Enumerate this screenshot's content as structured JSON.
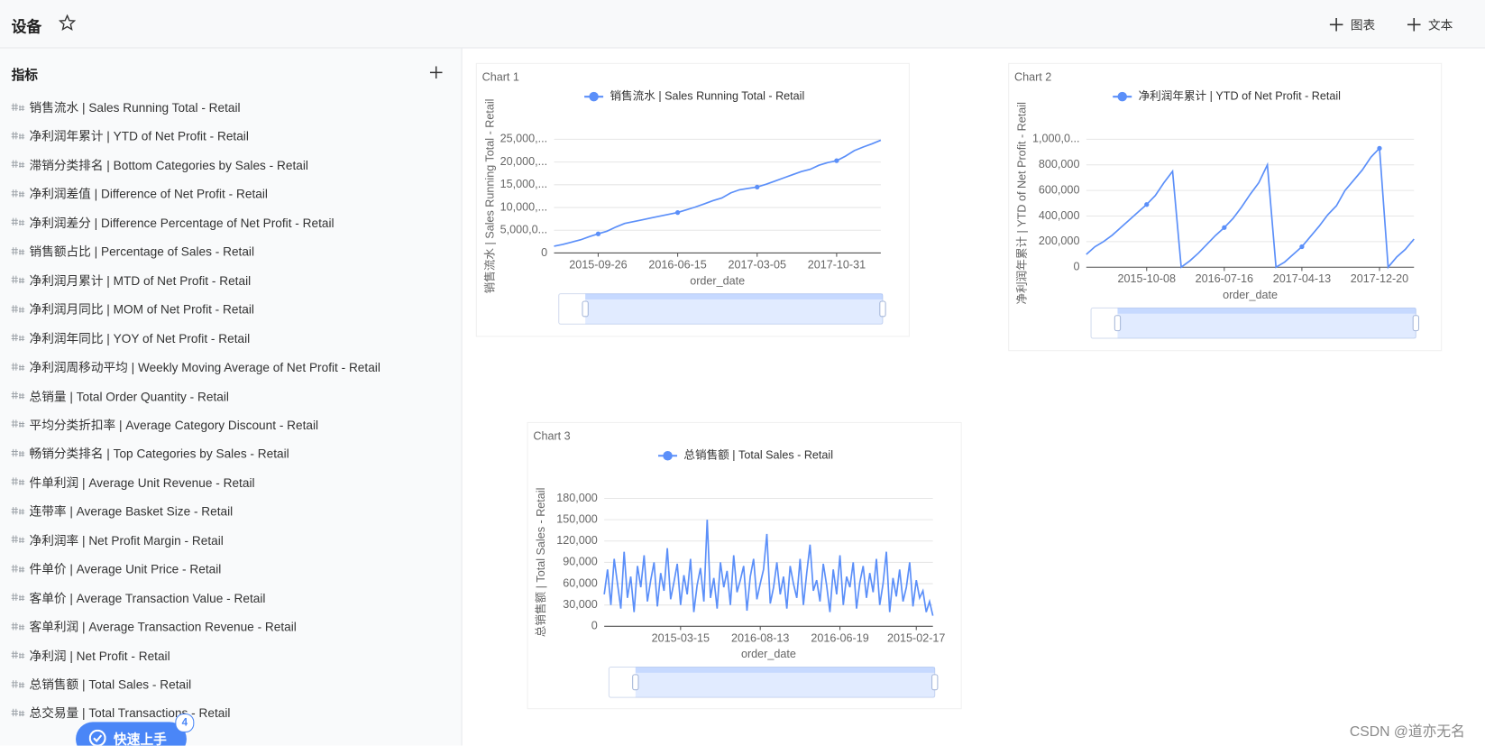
{
  "header": {
    "title": "设备",
    "actions": [
      "图表",
      "文本"
    ]
  },
  "sidebar": {
    "title": "指标",
    "items": [
      "销售流水 | Sales Running Total - Retail",
      "净利润年累计 | YTD of Net Profit - Retail",
      "滞销分类排名 | Bottom Categories by Sales - Retail",
      "净利润差值 | Difference of Net Profit - Retail",
      "净利润差分 | Difference Percentage of Net Profit - Retail",
      "销售额占比 | Percentage of Sales - Retail",
      "净利润月累计 | MTD of Net Profit - Retail",
      "净利润月同比 | MOM of Net Profit - Retail",
      "净利润年同比 | YOY of Net Profit - Retail",
      "净利润周移动平均 | Weekly Moving Average of Net Profit - Retail",
      "总销量 | Total Order Quantity - Retail",
      "平均分类折扣率 | Average Category Discount - Retail",
      "畅销分类排名 | Top Categories by Sales - Retail",
      "件单利润 | Average Unit Revenue - Retail",
      "连带率 | Average Basket Size - Retail",
      "净利润率 | Net Profit Margin - Retail",
      "件单价 | Average Unit Price - Retail",
      "客单价 | Average Transaction Value - Retail",
      "客单利润 | Average Transaction Revenue - Retail",
      "净利润 | Net Profit - Retail",
      "总销售额 | Total Sales - Retail",
      "总交易量 | Total Transactions - Retail"
    ]
  },
  "quick_start": {
    "label": "快速上手",
    "badge": "4"
  },
  "watermark": "CSDN @道亦无名",
  "chart_data": [
    {
      "type": "line",
      "title": "Chart 1",
      "x_label": "order_date",
      "y_label": "销售流水 | Sales Running Total - Retail",
      "markers": true,
      "categories": [
        null,
        null,
        null,
        null,
        null,
        "2015-09-26",
        null,
        null,
        null,
        null,
        null,
        null,
        null,
        null,
        "2016-06-15",
        null,
        null,
        null,
        null,
        null,
        null,
        null,
        null,
        "2017-03-05",
        null,
        null,
        null,
        null,
        null,
        null,
        null,
        null,
        "2017-10-31",
        null,
        null,
        null,
        null,
        null
      ],
      "series": [
        {
          "name": "销售流水 | Sales Running Total - Retail",
          "color": "#5b8ff9",
          "values": [
            1500000,
            1900000,
            2400000,
            2900000,
            3600000,
            4200000,
            4800000,
            5700000,
            6500000,
            6900000,
            7300000,
            7700000,
            8100000,
            8500000,
            8900000,
            9500000,
            10100000,
            10800000,
            11500000,
            12100000,
            13200000,
            13900000,
            14200000,
            14500000,
            15100000,
            15800000,
            16500000,
            17200000,
            17900000,
            18400000,
            19300000,
            19900000,
            20300000,
            21300000,
            22500000,
            23300000,
            24000000,
            24800000
          ]
        }
      ],
      "ylim": [
        0,
        25000000
      ],
      "yticks": [
        0,
        {
          "value": 5000000,
          "label": "5,000,0..."
        },
        {
          "value": 10000000,
          "label": "10,000,..."
        },
        {
          "value": 15000000,
          "label": "15,000,..."
        },
        {
          "value": 20000000,
          "label": "20,000,..."
        },
        {
          "value": 25000000,
          "label": "25,000,..."
        }
      ],
      "grid": true
    },
    {
      "type": "line",
      "title": "Chart 2",
      "x_label": "order_date",
      "y_label": "净利润年累计 | YTD of Net Profit - Retail",
      "markers": true,
      "categories": [
        null,
        null,
        null,
        null,
        null,
        null,
        null,
        "2015-10-08",
        null,
        null,
        null,
        null,
        null,
        null,
        null,
        null,
        "2016-07-16",
        null,
        null,
        null,
        null,
        null,
        null,
        null,
        null,
        "2017-04-13",
        null,
        null,
        null,
        null,
        null,
        null,
        null,
        null,
        "2017-12-20",
        null,
        null,
        null,
        null
      ],
      "series": [
        {
          "name": "净利润年累计 | YTD of Net Profit - Retail",
          "color": "#5b8ff9",
          "values": [
            100000,
            160000,
            200000,
            250000,
            310000,
            370000,
            430000,
            490000,
            560000,
            660000,
            750000,
            0,
            50000,
            110000,
            180000,
            250000,
            310000,
            380000,
            470000,
            570000,
            660000,
            800000,
            0,
            40000,
            100000,
            160000,
            240000,
            320000,
            410000,
            480000,
            600000,
            680000,
            760000,
            860000,
            930000,
            0,
            80000,
            140000,
            220000
          ]
        }
      ],
      "ylim": [
        0,
        1000000
      ],
      "yticks": [
        0,
        {
          "value": 200000,
          "label": "200,000"
        },
        {
          "value": 400000,
          "label": "400,000"
        },
        {
          "value": 600000,
          "label": "600,000"
        },
        {
          "value": 800000,
          "label": "800,000"
        },
        {
          "value": 1000000,
          "label": "1,000,0..."
        }
      ],
      "grid": true
    },
    {
      "type": "line",
      "title": "Chart 3",
      "x_label": "order_date",
      "y_label": "总销售额 | Total Sales - Retail",
      "markers": false,
      "categories": [
        null,
        null,
        null,
        null,
        null,
        null,
        null,
        null,
        null,
        null,
        null,
        null,
        null,
        null,
        null,
        null,
        null,
        null,
        null,
        null,
        null,
        null,
        null,
        "2015-03-15",
        null,
        null,
        null,
        null,
        null,
        null,
        null,
        null,
        null,
        null,
        null,
        null,
        null,
        null,
        null,
        null,
        null,
        null,
        null,
        null,
        null,
        null,
        null,
        "2016-08-13",
        null,
        null,
        null,
        null,
        null,
        null,
        null,
        null,
        null,
        null,
        null,
        null,
        null,
        null,
        null,
        null,
        null,
        null,
        null,
        null,
        null,
        null,
        null,
        "2016-06-19",
        null,
        null,
        null,
        null,
        null,
        null,
        null,
        null,
        null,
        null,
        null,
        null,
        null,
        null,
        null,
        null,
        null,
        null,
        null,
        null,
        null,
        null,
        "2015-02-17",
        null,
        null,
        null,
        null,
        null
      ],
      "series": [
        {
          "name": "总销售额 | Total Sales - Retail",
          "color": "#5b8ff9",
          "values": [
            45000,
            80000,
            30000,
            95000,
            60000,
            25000,
            105000,
            40000,
            70000,
            20000,
            85000,
            55000,
            100000,
            35000,
            65000,
            90000,
            28000,
            75000,
            50000,
            110000,
            38000,
            62000,
            88000,
            30000,
            72000,
            45000,
            95000,
            20000,
            58000,
            82000,
            35000,
            150000,
            40000,
            68000,
            25000,
            90000,
            55000,
            78000,
            30000,
            100000,
            48000,
            65000,
            85000,
            22000,
            70000,
            95000,
            38000,
            60000,
            80000,
            130000,
            32000,
            55000,
            90000,
            45000,
            70000,
            25000,
            85000,
            60000,
            40000,
            95000,
            30000,
            75000,
            115000,
            50000,
            65000,
            35000,
            88000,
            58000,
            20000,
            80000,
            45000,
            100000,
            30000,
            70000,
            55000,
            90000,
            25000,
            62000,
            85000,
            40000,
            75000,
            48000,
            95000,
            30000,
            60000,
            105000,
            20000,
            68000,
            42000,
            80000,
            35000,
            55000,
            90000,
            28000,
            65000,
            40000,
            50000,
            20000,
            35000,
            15000
          ]
        }
      ],
      "ylim": [
        0,
        180000
      ],
      "yticks": [
        0,
        {
          "value": 30000,
          "label": "30,000"
        },
        {
          "value": 60000,
          "label": "60,000"
        },
        {
          "value": 90000,
          "label": "90,000"
        },
        {
          "value": 120000,
          "label": "120,000"
        },
        {
          "value": 150000,
          "label": "150,000"
        },
        {
          "value": 180000,
          "label": "180,000"
        }
      ],
      "grid": true
    }
  ]
}
